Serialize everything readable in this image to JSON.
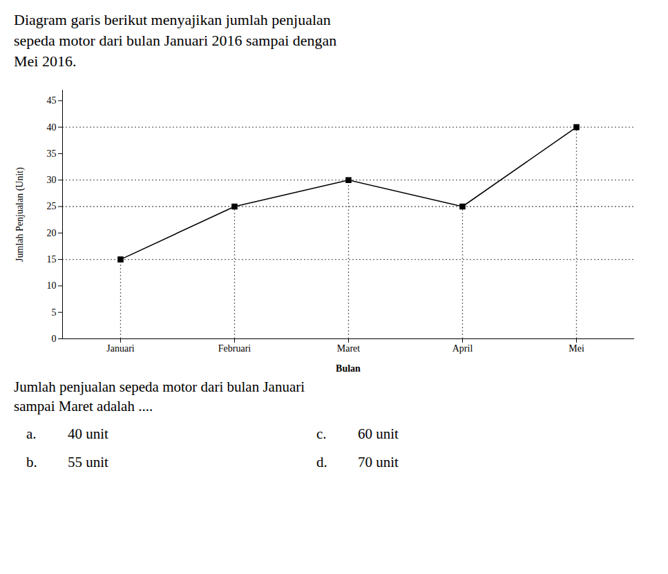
{
  "chart_data": {
    "type": "line",
    "title": [
      "Diagram garis berikut menyajikan jumlah penjualan",
      "sepeda motor dari bulan Januari 2016 sampai dengan",
      "Mei 2016."
    ],
    "categories": [
      "Januari",
      "Februari",
      "Maret",
      "April",
      "Mei"
    ],
    "values": [
      15,
      25,
      30,
      25,
      40
    ],
    "color": "#000000",
    "marker": "square",
    "xlabel": "Bulan",
    "ylabel": "Jumlah Penjualan (Unit)",
    "ylim": [
      0,
      47
    ],
    "yticks": [
      0,
      5,
      10,
      15,
      20,
      25,
      30,
      35,
      40,
      45
    ],
    "grid": false,
    "reference_lines": {
      "values": [
        15,
        25,
        30,
        40
      ],
      "color": "#666666",
      "line_style": "dotted"
    },
    "annotations": {
      "question": [
        "Jumlah penjualan sepeda motor dari bulan Januari",
        "sampai Maret adalah ...."
      ],
      "options": [
        [
          "a.",
          "40 unit",
          "c.",
          "60 unit"
        ],
        [
          "b.",
          "55 unit",
          "d.",
          "70 unit"
        ]
      ]
    }
  }
}
